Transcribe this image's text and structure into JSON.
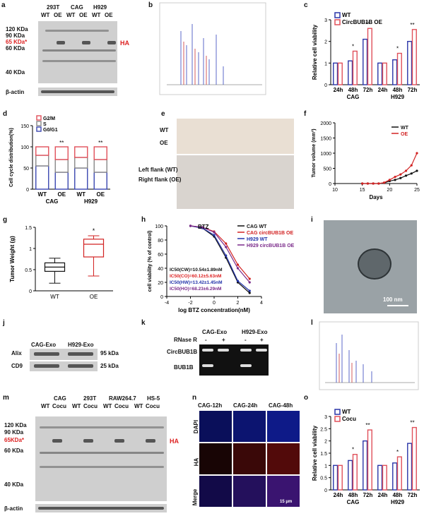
{
  "panel_letters": [
    "a",
    "b",
    "c",
    "d",
    "e",
    "f",
    "g",
    "h",
    "i",
    "j",
    "k",
    "l",
    "m",
    "n",
    "o"
  ],
  "panel_a": {
    "cell_lines": [
      "293T",
      "CAG",
      "H929"
    ],
    "lanes": [
      "WT",
      "OE",
      "WT",
      "OE",
      "WT",
      "OE"
    ],
    "markers": [
      "120 KDa",
      "90 KDa",
      "65 KDa*",
      "60 KDa",
      "40 KDa"
    ],
    "tag": "HA",
    "loading_control": "β-actin"
  },
  "panel_c": {
    "chart_data": {
      "type": "bar",
      "ylabel": "Relative cell viability",
      "ylim": [
        0,
        3
      ],
      "yticks": [
        0,
        1,
        2,
        3
      ],
      "categories": [
        "24h",
        "48h",
        "72h",
        "24h",
        "48h",
        "72h"
      ],
      "groups": [
        "CAG",
        "H929"
      ],
      "series": [
        {
          "name": "WT",
          "color": "#2a35a8",
          "values": [
            1.0,
            1.1,
            2.1,
            1.0,
            1.15,
            2.0
          ]
        },
        {
          "name": "CircBUB1B OE",
          "color": "#e0505a",
          "values": [
            1.0,
            1.55,
            2.6,
            1.0,
            1.45,
            2.55
          ]
        }
      ],
      "significance": [
        "",
        "*",
        "**",
        "",
        "*",
        "**"
      ]
    }
  },
  "panel_d": {
    "chart_data": {
      "type": "bar",
      "ylabel": "Cell cycle distribution(%)",
      "ylim": [
        0,
        150
      ],
      "yticks": [
        0,
        50,
        100,
        150
      ],
      "categories": [
        "WT",
        "OE",
        "WT",
        "OE"
      ],
      "groups": [
        "CAG",
        "H929"
      ],
      "legend": [
        "G2/M",
        "S",
        "G0/G1"
      ],
      "series": [
        {
          "name": "G0/G1",
          "color": "#3b47b0",
          "values": [
            55,
            40,
            50,
            40
          ]
        },
        {
          "name": "S",
          "color": "#888888",
          "values": [
            25,
            30,
            25,
            30
          ]
        },
        {
          "name": "G2/M",
          "color": "#e0505a",
          "values": [
            20,
            30,
            25,
            30
          ]
        }
      ],
      "significance": [
        "",
        "**",
        "",
        "**"
      ]
    }
  },
  "panel_e": {
    "row_labels": [
      "WT",
      "OE"
    ],
    "flank_labels": [
      "Left flank (WT)",
      "Right flank (OE)"
    ]
  },
  "panel_f": {
    "chart_data": {
      "type": "line",
      "xlabel": "Days",
      "ylabel": "Tumor volume (mm³)",
      "xlim": [
        10,
        25
      ],
      "ylim": [
        0,
        2000
      ],
      "xticks": [
        10,
        15,
        20,
        25
      ],
      "yticks": [
        0,
        500,
        1000,
        1500,
        2000
      ],
      "x": [
        15,
        16,
        17,
        18,
        19,
        20,
        21,
        22,
        23,
        24,
        25
      ],
      "series": [
        {
          "name": "WT",
          "color": "#111111",
          "values": [
            0,
            0,
            0,
            0,
            20,
            80,
            120,
            180,
            260,
            330,
            420
          ]
        },
        {
          "name": "OE",
          "color": "#d22222",
          "values": [
            0,
            0,
            0,
            0,
            30,
            120,
            220,
            300,
            420,
            600,
            1000
          ]
        }
      ]
    }
  },
  "panel_g": {
    "chart_data": {
      "type": "box",
      "ylabel": "Tumor Weight (g)",
      "ylim": [
        0,
        1.5
      ],
      "yticks": [
        0,
        0.5,
        1.0,
        1.5
      ],
      "categories": [
        "WT",
        "OE"
      ],
      "series": [
        {
          "name": "WT",
          "color": "#111111",
          "min": 0.18,
          "q1": 0.46,
          "median": 0.56,
          "q3": 0.66,
          "max": 0.77
        },
        {
          "name": "OE",
          "color": "#d22222",
          "min": 0.35,
          "q1": 0.8,
          "median": 1.1,
          "q3": 1.22,
          "max": 1.3
        }
      ],
      "significance": "*"
    }
  },
  "panel_h": {
    "chart_data": {
      "type": "line",
      "title": "BTZ",
      "xlabel": "log BTZ concentration(nM)",
      "ylabel": "cell viability (% of control)",
      "xlim": [
        -4,
        4
      ],
      "ylim": [
        0,
        100
      ],
      "xticks": [
        -4,
        -2,
        0,
        2,
        4
      ],
      "yticks": [
        0,
        20,
        40,
        60,
        80,
        100
      ],
      "x": [
        -2,
        -1,
        0,
        1,
        2,
        3
      ],
      "series": [
        {
          "name": "CAG WT",
          "color": "#111111",
          "values": [
            100,
            97,
            85,
            55,
            20,
            5
          ]
        },
        {
          "name": "CAG circBUB1B OE",
          "color": "#d22222",
          "values": [
            100,
            98,
            92,
            75,
            45,
            25
          ]
        },
        {
          "name": "H929 WT",
          "color": "#2233aa",
          "values": [
            100,
            97,
            87,
            58,
            22,
            8
          ]
        },
        {
          "name": "H929 circBUB1B OE",
          "color": "#7a2a8a",
          "values": [
            100,
            98,
            91,
            70,
            40,
            20
          ]
        }
      ],
      "annotations": [
        "IC50(CW)=10.54±1.89nM",
        "IC50(CO)=60.12±5.63nM",
        "IC50(HW)=13.42±1.45nM",
        "IC50(HO)=68.23±6.29nM"
      ]
    }
  },
  "panel_i": {
    "scale_bar": "100 nm"
  },
  "panel_j": {
    "lanes": [
      "CAG-Exo",
      "H929-Exo"
    ],
    "rows": [
      {
        "name": "Alix",
        "size": "95 kDa"
      },
      {
        "name": "CD9",
        "size": "25 kDa"
      }
    ]
  },
  "panel_k": {
    "groups": [
      "CAG-Exo",
      "H929-Exo"
    ],
    "treatment_label": "RNase R",
    "treatments": [
      "-",
      "+",
      "-",
      "+"
    ],
    "rows": [
      "CircBUB1B",
      "BUB1B"
    ]
  },
  "panel_m": {
    "cell_lines": [
      "CAG",
      "293T",
      "RAW264.7",
      "HS-5"
    ],
    "lanes": [
      "WT",
      "Cocu",
      "WT",
      "Cocu",
      "WT",
      "Cocu",
      "WT",
      "Cocu"
    ],
    "markers": [
      "120 KDa",
      "90 KDa",
      "65KDa*",
      "60 KDa",
      "40 KDa"
    ],
    "tag": "HA",
    "loading_control": "β-actin"
  },
  "panel_n": {
    "columns": [
      "CAG-12h",
      "CAG-24h",
      "CAG-48h"
    ],
    "rows": [
      "DAPI",
      "HA",
      "Merge"
    ],
    "scale_bar": "15 μm"
  },
  "panel_o": {
    "chart_data": {
      "type": "bar",
      "ylabel": "Relative cell viability",
      "ylim": [
        0,
        3
      ],
      "yticks": [
        0.0,
        0.5,
        1.0,
        1.5,
        2.0,
        2.5,
        3.0
      ],
      "categories": [
        "24h",
        "48h",
        "72h",
        "24h",
        "48h",
        "72h"
      ],
      "groups": [
        "CAG",
        "H929"
      ],
      "series": [
        {
          "name": "WT",
          "color": "#2a35a8",
          "values": [
            1.0,
            1.2,
            2.0,
            1.0,
            1.1,
            1.9
          ]
        },
        {
          "name": "Cocu",
          "color": "#e0505a",
          "values": [
            1.0,
            1.45,
            2.45,
            1.0,
            1.35,
            2.55
          ]
        }
      ],
      "significance": [
        "",
        "*",
        "**",
        "",
        "*",
        "**"
      ]
    }
  }
}
